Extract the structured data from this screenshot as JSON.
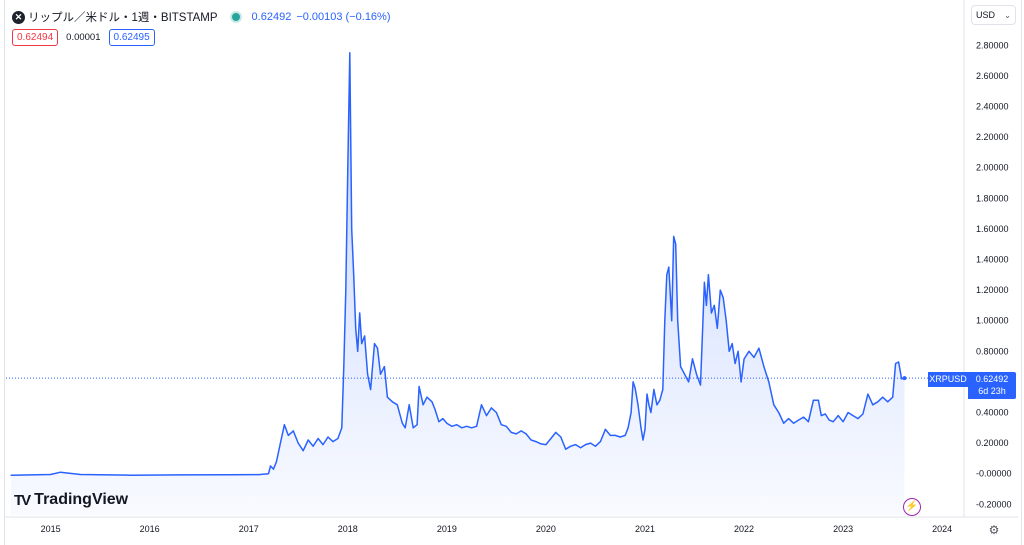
{
  "legend": {
    "symbol_icon": "close-x-icon",
    "symbol_title": "リップル／米ドル・1週・BITSTAMP",
    "last_price": "0.62492",
    "change": "−0.00103 (−0.16%)",
    "bid": "0.62494",
    "spread": "0.00001",
    "ask": "0.62495"
  },
  "currency": {
    "label": "USD",
    "chevron": "chevron-down-icon"
  },
  "price_tag": {
    "symbol": "XRPUSD",
    "price": "0.62492",
    "countdown": "6d 23h"
  },
  "branding": {
    "logo_text": "TradingView",
    "logo_mark": "TV"
  },
  "colors": {
    "line": "#2962ff",
    "area_fill": "#2962ff",
    "bid": "#f23645",
    "ask": "#2962ff",
    "live": "#26a69a"
  },
  "chart_data": {
    "type": "area",
    "series": [
      {
        "name": "XRPUSD",
        "points": [
          [
            2014.6,
            -0.01
          ],
          [
            2015.0,
            -0.005
          ],
          [
            2015.1,
            0.01
          ],
          [
            2015.3,
            -0.005
          ],
          [
            2015.8,
            -0.01
          ],
          [
            2016.3,
            -0.008
          ],
          [
            2016.8,
            -0.007
          ],
          [
            2017.1,
            -0.006
          ],
          [
            2017.2,
            0.0
          ],
          [
            2017.22,
            0.05
          ],
          [
            2017.25,
            0.03
          ],
          [
            2017.28,
            0.08
          ],
          [
            2017.32,
            0.2
          ],
          [
            2017.36,
            0.32
          ],
          [
            2017.4,
            0.25
          ],
          [
            2017.45,
            0.28
          ],
          [
            2017.5,
            0.2
          ],
          [
            2017.55,
            0.15
          ],
          [
            2017.6,
            0.22
          ],
          [
            2017.65,
            0.18
          ],
          [
            2017.7,
            0.23
          ],
          [
            2017.75,
            0.19
          ],
          [
            2017.8,
            0.24
          ],
          [
            2017.85,
            0.21
          ],
          [
            2017.9,
            0.23
          ],
          [
            2017.94,
            0.3
          ],
          [
            2017.96,
            0.7
          ],
          [
            2017.98,
            1.2
          ],
          [
            2018.0,
            2.0
          ],
          [
            2018.02,
            2.75
          ],
          [
            2018.04,
            1.6
          ],
          [
            2018.06,
            1.3
          ],
          [
            2018.08,
            0.95
          ],
          [
            2018.1,
            0.8
          ],
          [
            2018.12,
            1.05
          ],
          [
            2018.14,
            0.85
          ],
          [
            2018.17,
            0.9
          ],
          [
            2018.2,
            0.65
          ],
          [
            2018.23,
            0.55
          ],
          [
            2018.27,
            0.85
          ],
          [
            2018.3,
            0.82
          ],
          [
            2018.33,
            0.65
          ],
          [
            2018.37,
            0.7
          ],
          [
            2018.4,
            0.5
          ],
          [
            2018.45,
            0.47
          ],
          [
            2018.5,
            0.45
          ],
          [
            2018.55,
            0.33
          ],
          [
            2018.58,
            0.3
          ],
          [
            2018.62,
            0.45
          ],
          [
            2018.66,
            0.3
          ],
          [
            2018.7,
            0.32
          ],
          [
            2018.72,
            0.57
          ],
          [
            2018.76,
            0.45
          ],
          [
            2018.8,
            0.5
          ],
          [
            2018.85,
            0.47
          ],
          [
            2018.88,
            0.42
          ],
          [
            2018.92,
            0.34
          ],
          [
            2018.96,
            0.36
          ],
          [
            2019.0,
            0.33
          ],
          [
            2019.05,
            0.31
          ],
          [
            2019.1,
            0.32
          ],
          [
            2019.15,
            0.3
          ],
          [
            2019.2,
            0.31
          ],
          [
            2019.25,
            0.3
          ],
          [
            2019.3,
            0.31
          ],
          [
            2019.35,
            0.45
          ],
          [
            2019.4,
            0.38
          ],
          [
            2019.45,
            0.43
          ],
          [
            2019.5,
            0.4
          ],
          [
            2019.55,
            0.32
          ],
          [
            2019.6,
            0.31
          ],
          [
            2019.65,
            0.27
          ],
          [
            2019.7,
            0.26
          ],
          [
            2019.75,
            0.28
          ],
          [
            2019.8,
            0.26
          ],
          [
            2019.85,
            0.22
          ],
          [
            2019.9,
            0.21
          ],
          [
            2019.95,
            0.195
          ],
          [
            2020.0,
            0.19
          ],
          [
            2020.05,
            0.23
          ],
          [
            2020.1,
            0.27
          ],
          [
            2020.15,
            0.24
          ],
          [
            2020.2,
            0.16
          ],
          [
            2020.25,
            0.18
          ],
          [
            2020.3,
            0.19
          ],
          [
            2020.35,
            0.17
          ],
          [
            2020.4,
            0.19
          ],
          [
            2020.45,
            0.2
          ],
          [
            2020.5,
            0.18
          ],
          [
            2020.55,
            0.21
          ],
          [
            2020.6,
            0.29
          ],
          [
            2020.65,
            0.25
          ],
          [
            2020.7,
            0.25
          ],
          [
            2020.75,
            0.24
          ],
          [
            2020.8,
            0.25
          ],
          [
            2020.83,
            0.3
          ],
          [
            2020.86,
            0.4
          ],
          [
            2020.88,
            0.6
          ],
          [
            2020.9,
            0.56
          ],
          [
            2020.93,
            0.45
          ],
          [
            2020.96,
            0.3
          ],
          [
            2020.98,
            0.22
          ],
          [
            2021.0,
            0.29
          ],
          [
            2021.02,
            0.52
          ],
          [
            2021.04,
            0.45
          ],
          [
            2021.06,
            0.4
          ],
          [
            2021.09,
            0.55
          ],
          [
            2021.12,
            0.45
          ],
          [
            2021.15,
            0.48
          ],
          [
            2021.18,
            0.55
          ],
          [
            2021.2,
            1.0
          ],
          [
            2021.22,
            1.3
          ],
          [
            2021.24,
            1.35
          ],
          [
            2021.27,
            1.0
          ],
          [
            2021.29,
            1.55
          ],
          [
            2021.31,
            1.5
          ],
          [
            2021.33,
            1.0
          ],
          [
            2021.36,
            0.7
          ],
          [
            2021.4,
            0.65
          ],
          [
            2021.44,
            0.6
          ],
          [
            2021.48,
            0.75
          ],
          [
            2021.52,
            0.65
          ],
          [
            2021.56,
            0.58
          ],
          [
            2021.6,
            1.25
          ],
          [
            2021.62,
            1.1
          ],
          [
            2021.64,
            1.3
          ],
          [
            2021.67,
            1.05
          ],
          [
            2021.7,
            1.1
          ],
          [
            2021.73,
            0.95
          ],
          [
            2021.76,
            1.2
          ],
          [
            2021.79,
            1.15
          ],
          [
            2021.82,
            1.0
          ],
          [
            2021.85,
            0.8
          ],
          [
            2021.88,
            0.85
          ],
          [
            2021.91,
            0.72
          ],
          [
            2021.94,
            0.8
          ],
          [
            2021.97,
            0.6
          ],
          [
            2022.0,
            0.75
          ],
          [
            2022.05,
            0.8
          ],
          [
            2022.1,
            0.76
          ],
          [
            2022.15,
            0.82
          ],
          [
            2022.2,
            0.7
          ],
          [
            2022.25,
            0.6
          ],
          [
            2022.3,
            0.45
          ],
          [
            2022.35,
            0.4
          ],
          [
            2022.4,
            0.33
          ],
          [
            2022.45,
            0.36
          ],
          [
            2022.5,
            0.33
          ],
          [
            2022.55,
            0.35
          ],
          [
            2022.6,
            0.37
          ],
          [
            2022.65,
            0.34
          ],
          [
            2022.7,
            0.48
          ],
          [
            2022.75,
            0.48
          ],
          [
            2022.78,
            0.38
          ],
          [
            2022.82,
            0.39
          ],
          [
            2022.86,
            0.35
          ],
          [
            2022.9,
            0.34
          ],
          [
            2022.95,
            0.38
          ],
          [
            2023.0,
            0.34
          ],
          [
            2023.05,
            0.4
          ],
          [
            2023.1,
            0.38
          ],
          [
            2023.15,
            0.36
          ],
          [
            2023.2,
            0.39
          ],
          [
            2023.25,
            0.52
          ],
          [
            2023.3,
            0.45
          ],
          [
            2023.35,
            0.47
          ],
          [
            2023.4,
            0.5
          ],
          [
            2023.45,
            0.47
          ],
          [
            2023.5,
            0.5
          ],
          [
            2023.53,
            0.72
          ],
          [
            2023.56,
            0.73
          ],
          [
            2023.59,
            0.62
          ],
          [
            2023.62,
            0.625
          ]
        ]
      }
    ],
    "x_ticks": [
      "2015",
      "2016",
      "2017",
      "2018",
      "2019",
      "2020",
      "2021",
      "2022",
      "2023",
      "2024"
    ],
    "x_tick_values": [
      2015,
      2016,
      2017,
      2018,
      2019,
      2020,
      2021,
      2022,
      2023,
      2024
    ],
    "xlim": [
      2014.55,
      2024.2
    ],
    "y_ticks": [
      "2.80000",
      "2.60000",
      "2.40000",
      "2.20000",
      "2.00000",
      "1.80000",
      "1.60000",
      "1.40000",
      "1.20000",
      "1.00000",
      "0.80000",
      "0.60000",
      "0.40000",
      "0.20000",
      "-0.00000",
      "-0.20000"
    ],
    "y_tick_values": [
      2.8,
      2.6,
      2.4,
      2.2,
      2.0,
      1.8,
      1.6,
      1.4,
      1.2,
      1.0,
      0.8,
      0.6,
      0.4,
      0.2,
      0.0,
      -0.2
    ],
    "ylim": [
      -0.27,
      2.9
    ],
    "last_value": 0.62492,
    "grid": false,
    "legend": "top-left"
  }
}
